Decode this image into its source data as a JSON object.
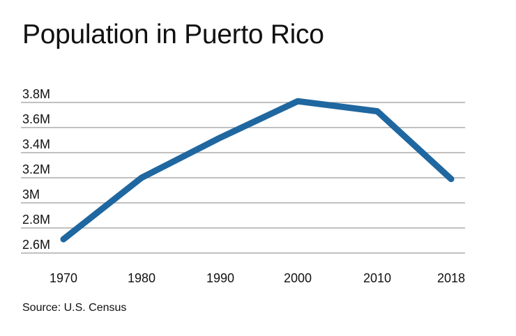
{
  "chart_data": {
    "type": "line",
    "title": "Population in Puerto Rico",
    "source": "Source: U.S. Census",
    "x": [
      "1970",
      "1980",
      "1990",
      "2000",
      "2010",
      "2018"
    ],
    "series": [
      {
        "values": [
          2.71,
          3.2,
          3.52,
          3.81,
          3.73,
          3.19
        ]
      }
    ],
    "yticks": [
      2.6,
      2.8,
      3.0,
      3.2,
      3.4,
      3.6,
      3.8
    ],
    "ytick_labels": [
      "2.6M",
      "2.8M",
      "3M",
      "3.2M",
      "3.4M",
      "3.6M",
      "3.8M"
    ],
    "ylim": [
      2.6,
      3.8
    ],
    "grid": "horizontal",
    "line_color": "#1f67a0",
    "grid_color": "#9a9a9a"
  }
}
